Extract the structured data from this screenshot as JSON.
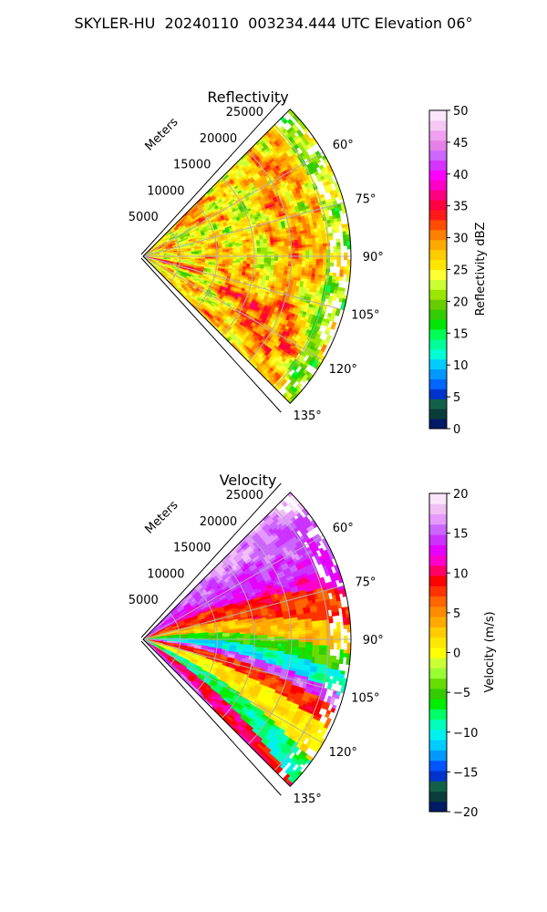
{
  "figure": {
    "title": "SKYLER-HU  20240110  003234.444 UTC Elevation 06°"
  },
  "chart_data": [
    {
      "type": "heatmap",
      "projection": "polar sector (PPI)",
      "title": "Reflectivity",
      "range_label": "Meters",
      "range_ticks": [
        5000,
        10000,
        15000,
        20000,
        25000
      ],
      "range_tick_labels": [
        "5000",
        "10000",
        "15000",
        "20000",
        "25000"
      ],
      "rmax": 28000,
      "azimuth_ticks": [
        60,
        75,
        90,
        105,
        120,
        135
      ],
      "azimuth_tick_labels": [
        "60°",
        "75°",
        "90°",
        "105°",
        "120°",
        "135°"
      ],
      "azimuth_range": [
        45,
        135
      ],
      "grid": true,
      "colorbar": {
        "label": "Reflectivity dBZ",
        "min": 0,
        "max": 50,
        "ticks": [
          0,
          5,
          10,
          15,
          20,
          25,
          30,
          35,
          40,
          45,
          50
        ],
        "tick_labels": [
          "0",
          "5",
          "10",
          "15",
          "20",
          "25",
          "30",
          "35",
          "40",
          "45",
          "50"
        ]
      },
      "approx_values": {
        "dominant_range_dbz": [
          25,
          35
        ],
        "max_dbz": 40,
        "min_dbz": 18
      }
    },
    {
      "type": "heatmap",
      "projection": "polar sector (PPI)",
      "title": "Velocity",
      "range_label": "Meters",
      "range_ticks": [
        5000,
        10000,
        15000,
        20000,
        25000
      ],
      "range_tick_labels": [
        "5000",
        "10000",
        "15000",
        "20000",
        "25000"
      ],
      "rmax": 28000,
      "azimuth_ticks": [
        60,
        75,
        90,
        105,
        120,
        135
      ],
      "azimuth_tick_labels": [
        "60°",
        "75°",
        "90°",
        "105°",
        "120°",
        "135°"
      ],
      "azimuth_range": [
        45,
        135
      ],
      "grid": true,
      "colorbar": {
        "label": "Velocity (m/s)",
        "min": -20,
        "max": 20,
        "ticks": [
          -20,
          -15,
          -10,
          -5,
          0,
          5,
          10,
          15,
          20
        ],
        "tick_labels": [
          "−20",
          "−15",
          "−10",
          "−5",
          "0",
          "5",
          "10",
          "15",
          "20"
        ]
      },
      "approx_values": {
        "min_ms": -15,
        "max_ms": 17
      }
    }
  ],
  "colormaps": {
    "reflectivity": [
      "#001a66",
      "#0a3d3a",
      "#11614a",
      "#0033cc",
      "#0066ff",
      "#0099ff",
      "#00ccff",
      "#00ffd5",
      "#00ff99",
      "#00ff55",
      "#00e600",
      "#33cc00",
      "#66cc00",
      "#99e600",
      "#ccff33",
      "#ffff33",
      "#ffe600",
      "#ffcc00",
      "#ffaa00",
      "#ff8000",
      "#ff4d00",
      "#ff1a1a",
      "#ff0040",
      "#ff0080",
      "#ff00c8",
      "#ff00ff",
      "#d633ff",
      "#cc66ff",
      "#e680e6",
      "#f0a0f0",
      "#f5c8f5",
      "#fbe6fb"
    ],
    "velocity": [
      "#001a66",
      "#0a3d3a",
      "#11614a",
      "#0033cc",
      "#0055ff",
      "#0099ff",
      "#00ccff",
      "#00f0f0",
      "#00ffbb",
      "#00ff66",
      "#00ee00",
      "#33cc00",
      "#66dd00",
      "#99ff33",
      "#ccff33",
      "#ffff00",
      "#ffe600",
      "#ffcc00",
      "#ffaa00",
      "#ff8c00",
      "#ff6600",
      "#ff3300",
      "#ff0000",
      "#ff0066",
      "#ff00cc",
      "#e600ff",
      "#cc33ff",
      "#cc66ff",
      "#e699ff",
      "#f0c0f5",
      "#fae6fa"
    ]
  }
}
